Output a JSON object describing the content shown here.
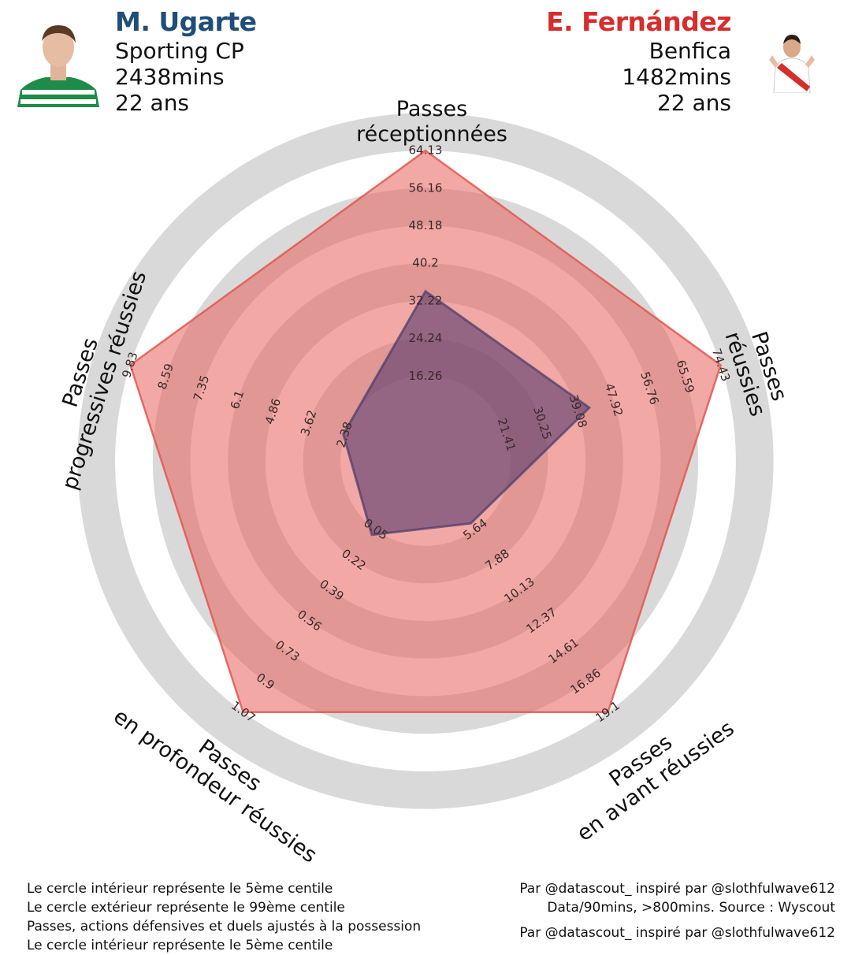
{
  "players": [
    {
      "name": "M. Ugarte",
      "club": "Sporting CP",
      "minutes": "2438mins",
      "age": "22 ans",
      "color": "#1f4e79"
    },
    {
      "name": "E. Fernández",
      "club": "Benfica",
      "minutes": "1482mins",
      "age": "22 ans",
      "color": "#d62d2d"
    }
  ],
  "footer": {
    "left": [
      "Le cercle intérieur représente le 5ème centile",
      "Le cercle extérieur représente le 99ème centile",
      "Passes, actions défensives et duels ajustés à la possession",
      "Le cercle intérieur représente le 5ème centile"
    ],
    "right": [
      "Par @datascout_ inspiré par @slothfulwave612",
      "Data/90mins, >800mins. Source : Wyscout",
      "Par @datascout_ inspiré par @slothfulwave612"
    ]
  },
  "chart_data": {
    "type": "radar",
    "axes": [
      {
        "label": [
          "Passes",
          "réceptionnées"
        ],
        "ticks": [
          "16.26",
          "24.24",
          "32.22",
          "40.2",
          "48.18",
          "56.16",
          "64.13"
        ],
        "min": 8.28,
        "max": 64.13
      },
      {
        "label": [
          "Passes",
          "réussies"
        ],
        "ticks": [
          "21.41",
          "30.25",
          "39.08",
          "47.92",
          "56.76",
          "65.59",
          "74.43"
        ],
        "min": 12.57,
        "max": 74.43
      },
      {
        "label": [
          "Passes",
          "en avant réussies"
        ],
        "ticks": [
          "5.64",
          "7.88",
          "10.13",
          "12.37",
          "14.61",
          "16.86",
          "19.1"
        ],
        "min": 3.4,
        "max": 19.1
      },
      {
        "label": [
          "Passes",
          "en profondeur réussies"
        ],
        "ticks": [
          "0.05",
          "0.22",
          "0.39",
          "0.56",
          "0.73",
          "0.9",
          "1.07"
        ],
        "min": -0.12,
        "max": 1.07
      },
      {
        "label": [
          "Passes",
          "progressives réussies"
        ],
        "ticks": [
          "2.38",
          "3.62",
          "4.86",
          "6.1",
          "7.35",
          "8.59",
          "9.83"
        ],
        "min": 1.14,
        "max": 9.83
      }
    ],
    "series": [
      {
        "name": "E. Fernández",
        "values": [
          64.13,
          74.43,
          19.1,
          1.07,
          9.83
        ],
        "color": "#e8625c"
      },
      {
        "name": "M. Ugarte",
        "values": [
          38.8,
          46.9,
          7.3,
          0.23,
          3.56
        ],
        "color": "#5a3d6e"
      }
    ]
  }
}
